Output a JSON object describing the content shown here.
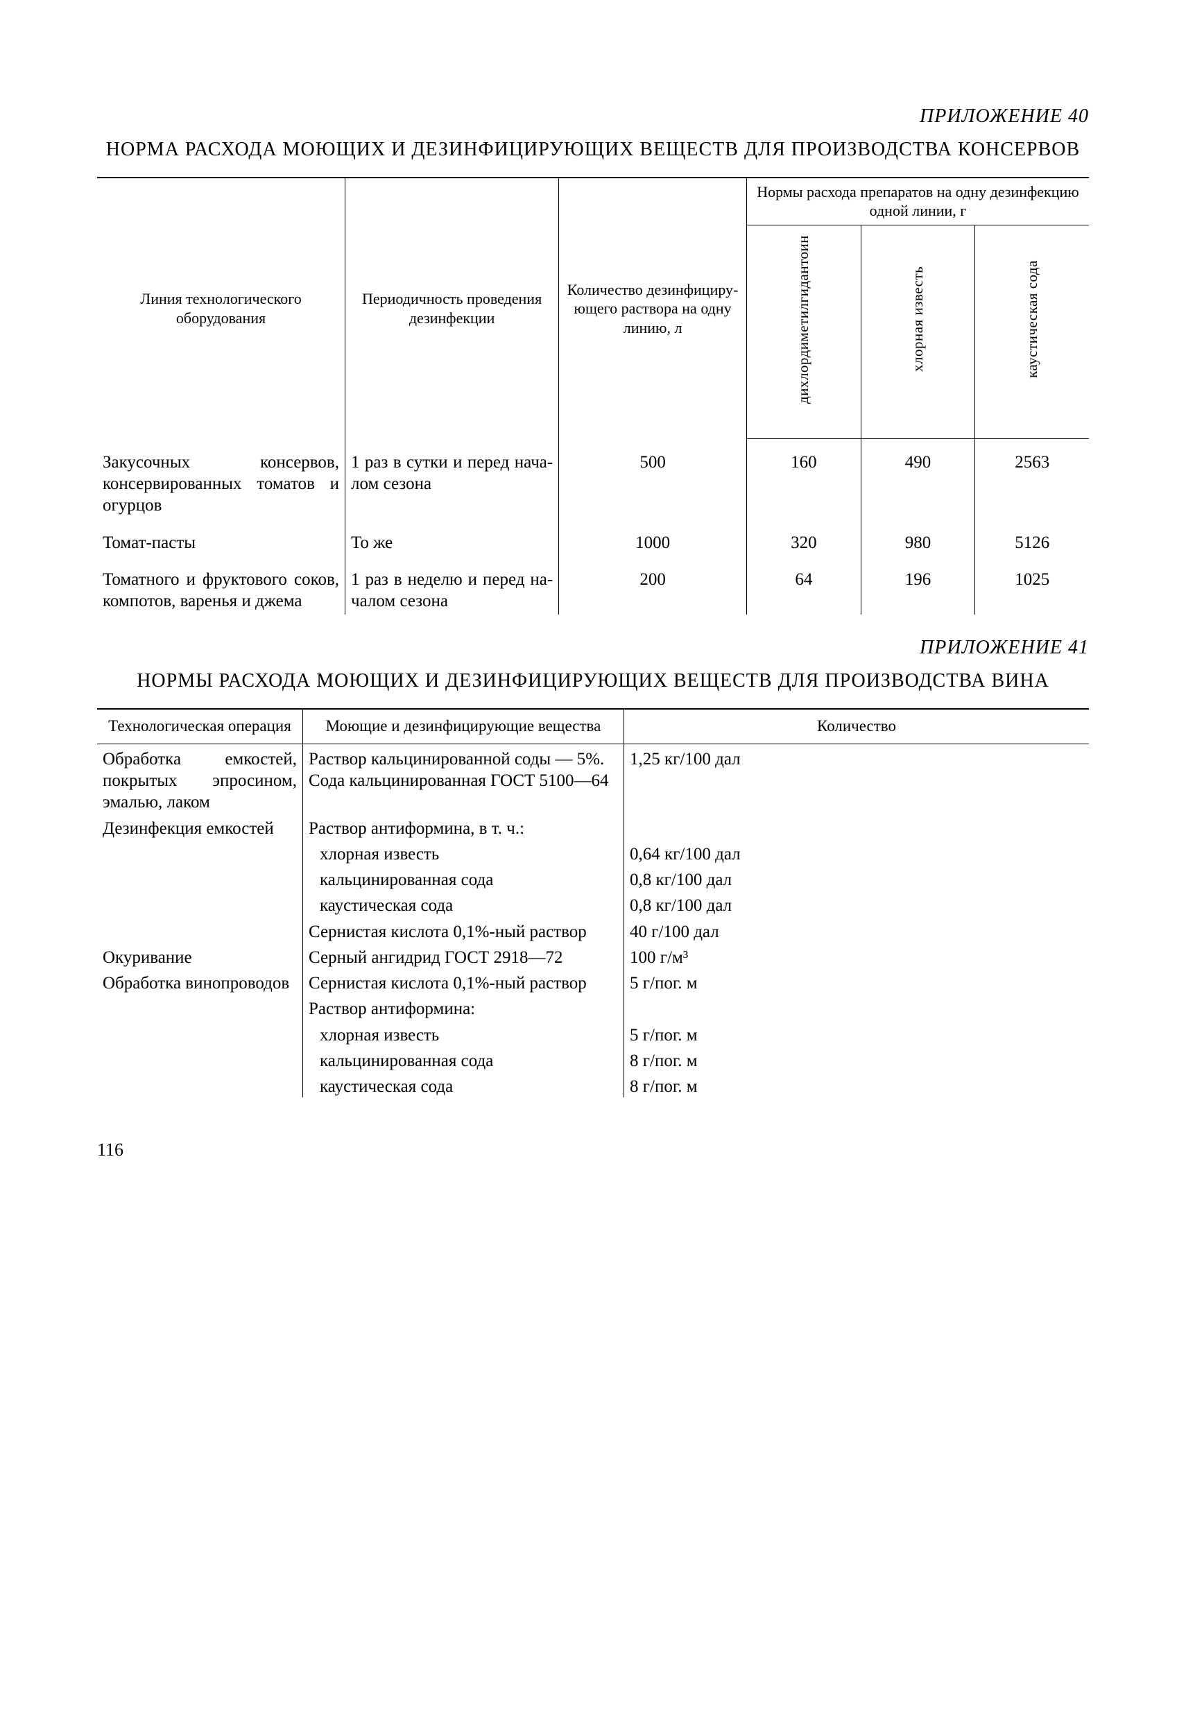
{
  "appendix40": {
    "label": "ПРИЛОЖЕНИЕ 40",
    "title": "НОРМА РАСХОДА МОЮЩИХ И ДЕЗИНФИЦИРУЮЩИХ ВЕЩЕСТВ ДЛЯ ПРОИЗВОДСТВА КОНСЕРВОВ",
    "headers": {
      "line": "Линия технологического оборудования",
      "period": "Периодичность проведения дезинфекции",
      "qty": "Количество дезинфициру­ющего раствора на одну линию, л",
      "norm_group": "Нормы расхода препа­ратов на одну дезин­фекцию одной линии, г",
      "v1": "дихлордиме­тилгидантоин",
      "v2": "хлорная известь",
      "v3": "каустическая сода"
    },
    "rows": [
      {
        "line": "Закусочных консер­вов, консервиро­ванных томатов и огурцов",
        "period": "1 раз в сутки и перед нача­лом сезона",
        "qty": "500",
        "v1": "160",
        "v2": "490",
        "v3": "2563"
      },
      {
        "line": "Томат-пасты",
        "period": "То же",
        "qty": "1000",
        "v1": "320",
        "v2": "980",
        "v3": "5126"
      },
      {
        "line": "Томатного и фрук­тового соков, компотов, ва­ренья и джема",
        "period": "1 раз в неде­лю и перед на­чалом сезона",
        "qty": "200",
        "v1": "64",
        "v2": "196",
        "v3": "1025"
      }
    ]
  },
  "appendix41": {
    "label": "ПРИЛОЖЕНИЕ 41",
    "title": "НОРМЫ РАСХОДА МОЮЩИХ И ДЕЗИНФИЦИРУЮЩИХ ВЕЩЕСТВ ДЛЯ ПРОИЗВОДСТВА ВИНА",
    "headers": {
      "c1": "Технологическая операция",
      "c2": "Моющие и дезинфицирующие вещества",
      "c3": "Количество"
    },
    "rows": [
      {
        "c1": "Обработка емко­стей, покрытых эпросином, эма­лью, лаком",
        "c2": "Раствор кальцинированной соды — 5%. Сода каль­цинированная ГОСТ 5100—64",
        "c3": "1,25 кг/100 дал"
      },
      {
        "c1": "Дезинфекция ем­костей",
        "c2": "Раствор антиформина, в т. ч.:",
        "c3": ""
      },
      {
        "c1": "",
        "c2": "хлорная известь",
        "c3": "0,64 кг/100 дал",
        "sub": true
      },
      {
        "c1": "",
        "c2": "кальцинированная сода",
        "c3": "0,8 кг/100 дал",
        "sub": true
      },
      {
        "c1": "",
        "c2": "каустическая сода",
        "c3": "0,8 кг/100 дал",
        "sub": true
      },
      {
        "c1": "",
        "c2": "Сернистая кислота 0,1%-ный раствор",
        "c3": "40 г/100 дал"
      },
      {
        "c1": "Окуривание",
        "c2": "Серный ангидрид ГОСТ 2918—72",
        "c3": "100 г/м³"
      },
      {
        "c1": "Обработка вино­проводов",
        "c2": "Сернистая кислота 0,1%-ный раствор",
        "c3": "5 г/пог. м"
      },
      {
        "c1": "",
        "c2": "Раствор антиформина:",
        "c3": ""
      },
      {
        "c1": "",
        "c2": "хлорная известь",
        "c3": "5 г/пог. м",
        "sub": true
      },
      {
        "c1": "",
        "c2": "кальцинированная сода",
        "c3": "8 г/пог. м",
        "sub": true
      },
      {
        "c1": "",
        "c2": "каустическая сода",
        "c3": "8 г/пог. м",
        "sub": true
      }
    ]
  },
  "page_number": "116"
}
